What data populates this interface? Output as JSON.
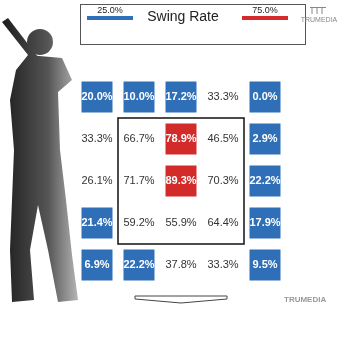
{
  "chart_data": {
    "type": "heatmap",
    "title": "Swing Rate",
    "cells": [
      [
        20.0,
        10.0,
        17.2,
        33.3,
        0.0
      ],
      [
        33.3,
        66.7,
        78.9,
        46.5,
        2.9
      ],
      [
        26.1,
        71.7,
        89.3,
        70.3,
        22.2
      ],
      [
        21.4,
        59.2,
        55.9,
        64.4,
        17.9
      ],
      [
        6.9,
        22.2,
        37.8,
        33.3,
        9.5
      ]
    ],
    "value_labels": [
      [
        "20.0%",
        "10.0%",
        "17.2%",
        "33.3%",
        "0.0%"
      ],
      [
        "33.3%",
        "66.7%",
        "78.9%",
        "46.5%",
        "2.9%"
      ],
      [
        "26.1%",
        "71.7%",
        "89.3%",
        "70.3%",
        "22.2%"
      ],
      [
        "21.4%",
        "59.2%",
        "55.9%",
        "64.4%",
        "17.9%"
      ],
      [
        "6.9%",
        "22.2%",
        "37.8%",
        "33.3%",
        "9.5%"
      ]
    ],
    "color_range": [
      25,
      75
    ],
    "color_ticks": [
      {
        "value": 25,
        "label": "25.0%"
      },
      {
        "value": 75,
        "label": "75.0%"
      }
    ],
    "data_labels": true,
    "tick_labels": false,
    "annotations": [
      "TRUMEDIA",
      "TRUMEDIA"
    ]
  }
}
